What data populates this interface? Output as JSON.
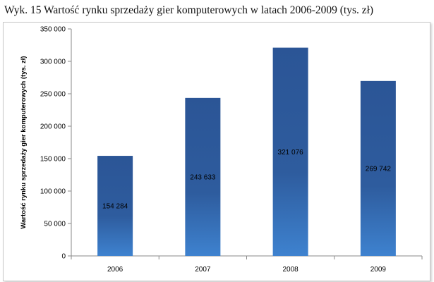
{
  "caption": "Wyk. 15 Wartość rynku sprzedaży gier komputerowych w latach 2006-2009 (tys. zł)",
  "chart_data": {
    "type": "bar",
    "title": "Wyk. 15 Wartość rynku sprzedaży gier komputerowych w latach 2006-2009 (tys. zł)",
    "categories": [
      "2006",
      "2007",
      "2008",
      "2009"
    ],
    "values": [
      154284,
      243633,
      321076,
      269742
    ],
    "data_labels": [
      "154 284",
      "243 633",
      "321 076",
      "269 742"
    ],
    "xlabel": "",
    "ylabel": "Wartość rynku sprzedaży gier komputerowych (tys. zł)",
    "ylim": [
      0,
      350000
    ],
    "yticks": [
      0,
      50000,
      100000,
      150000,
      200000,
      250000,
      300000,
      350000
    ],
    "ytick_labels": [
      "0",
      "50 000",
      "100 000",
      "150 000",
      "200 000",
      "250 000",
      "300 000",
      "350 000"
    ],
    "grid": false,
    "legend": "none",
    "colors": {
      "bar_top": "#2b5596",
      "bar_mid": "#2e5c9e",
      "bar_bottom": "#3e82cf",
      "axis": "#8a8a8a"
    }
  }
}
